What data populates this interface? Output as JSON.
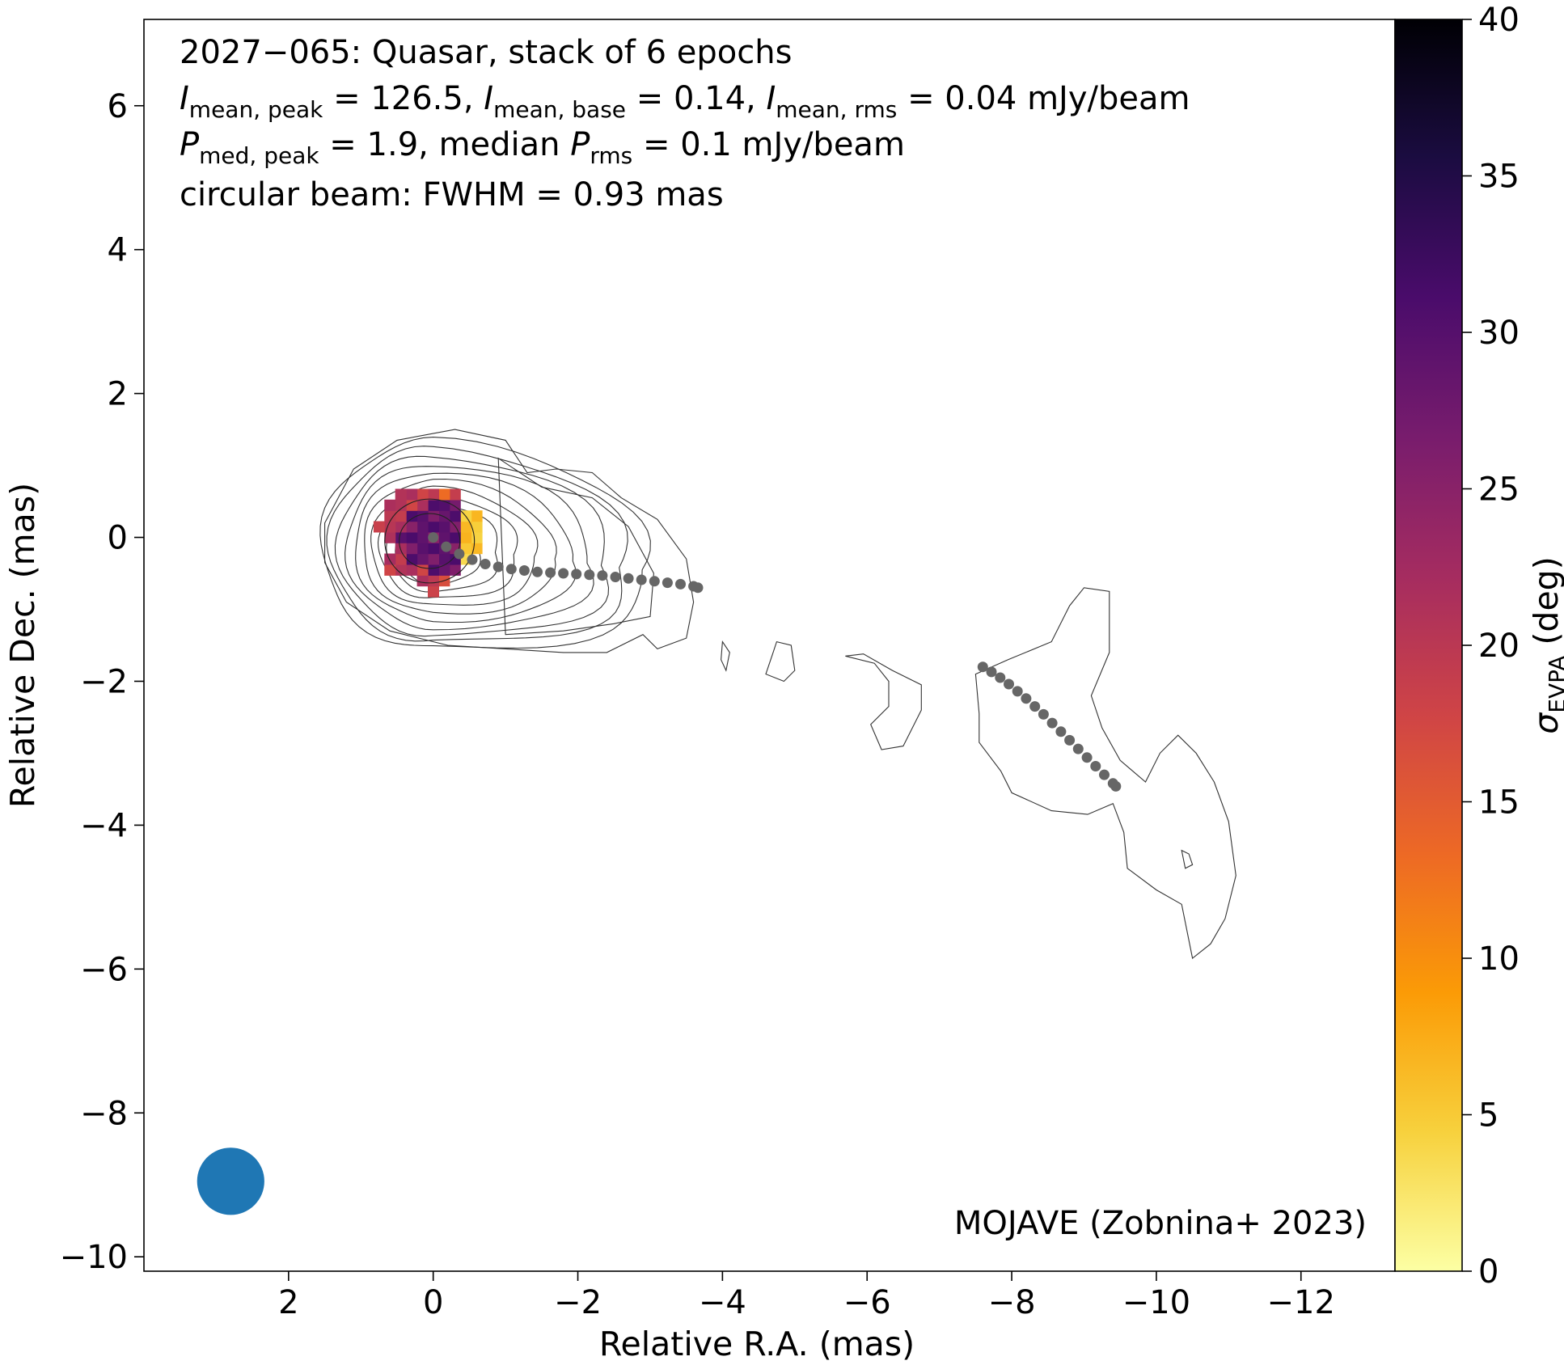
{
  "chart_data": {
    "type": "heatmap",
    "overlay_types": [
      "contour",
      "scatter"
    ],
    "info": {
      "line1": "2027−065: Quasar, stack of 6 epochs",
      "line2": {
        "i1_sym": "I",
        "i1_sub": "mean, peak",
        "i1_val": " = 126.5, ",
        "i2_sym": "I",
        "i2_sub": "mean, base",
        "i2_val": " = 0.14, ",
        "i3_sym": "I",
        "i3_sub": "mean, rms",
        "i3_val": " = 0.04 mJy/beam"
      },
      "line3": {
        "p1_sym": "P",
        "p1_sub": "med, peak",
        "p1_val": " = 1.9, median ",
        "p2_sym": "P",
        "p2_sub": "rms",
        "p2_val": " = 0.1 mJy/beam"
      },
      "line4": "circular beam: FWHM = 0.93 mas"
    },
    "credit": "MOJAVE (Zobnina+ 2023)",
    "xlabel": "Relative R.A. (mas)",
    "ylabel": "Relative Dec. (mas)",
    "xlim": [
      4.0,
      -13.3
    ],
    "ylim": [
      -10.2,
      7.2
    ],
    "x_ticks": [
      2,
      0,
      -2,
      -4,
      -6,
      -8,
      -10,
      -12
    ],
    "x_tick_labels": [
      "2",
      "0",
      "−2",
      "−4",
      "−6",
      "−8",
      "−10",
      "−12"
    ],
    "y_ticks": [
      6,
      4,
      2,
      0,
      -2,
      -4,
      -6,
      -8,
      -10
    ],
    "y_tick_labels": [
      "6",
      "4",
      "2",
      "0",
      "−2",
      "−4",
      "−6",
      "−8",
      "−10"
    ],
    "colorbar": {
      "label_sym": "σ",
      "label_sub": "EVPA",
      "label_unit": " (deg)",
      "range": [
        0,
        40
      ],
      "ticks": [
        0,
        5,
        10,
        15,
        20,
        25,
        30,
        35,
        40
      ],
      "tick_labels": [
        "0",
        "5",
        "10",
        "15",
        "20",
        "25",
        "30",
        "35",
        "40"
      ],
      "colormap": "inferno_r",
      "colormap_stops": [
        "#fcffa4",
        "#f7d13d",
        "#fb9b06",
        "#ed6925",
        "#cf4446",
        "#a52c60",
        "#781c6d",
        "#4a0c6b",
        "#1b0c41",
        "#000004"
      ]
    },
    "heatmap": {
      "center": [
        0.0,
        0.0
      ],
      "radius_mas": 0.75,
      "pixel_mas": 0.15,
      "value_range_deg": [
        2,
        33
      ],
      "typical": "inner region ~26-30 deg, eastern rim ~18-22 deg, western rim ~3-8 deg"
    },
    "contours": {
      "color": "#333333",
      "levels_count": 11,
      "core_center": [
        0.0,
        0.0
      ],
      "east_extent_mas": 1.55,
      "outer_lobe_west_extent_mas": -3.7
    },
    "ridgeline_color": "#666666",
    "ridgeline_segments": [
      {
        "x": [
          0.0,
          -0.18,
          -0.36,
          -0.54,
          -0.72,
          -0.9,
          -1.08,
          -1.26,
          -1.44,
          -1.62,
          -1.8,
          -1.98,
          -2.16,
          -2.34,
          -2.52,
          -2.7,
          -2.88,
          -3.06,
          -3.24,
          -3.42,
          -3.6,
          -3.66
        ],
        "y": [
          0.0,
          -0.13,
          -0.23,
          -0.31,
          -0.37,
          -0.41,
          -0.44,
          -0.46,
          -0.48,
          -0.49,
          -0.5,
          -0.51,
          -0.52,
          -0.53,
          -0.55,
          -0.57,
          -0.59,
          -0.61,
          -0.63,
          -0.65,
          -0.68,
          -0.7
        ]
      },
      {
        "x": [
          -7.6,
          -7.72,
          -7.84,
          -7.96,
          -8.08,
          -8.2,
          -8.32,
          -8.44,
          -8.56,
          -8.68,
          -8.8,
          -8.92,
          -9.04,
          -9.16,
          -9.28,
          -9.4,
          -9.44
        ],
        "y": [
          -1.8,
          -1.87,
          -1.95,
          -2.04,
          -2.14,
          -2.24,
          -2.35,
          -2.46,
          -2.58,
          -2.7,
          -2.82,
          -2.94,
          -3.06,
          -3.18,
          -3.3,
          -3.42,
          -3.46
        ]
      }
    ],
    "beam": {
      "x": 2.8,
      "y": -8.95,
      "fwhm_mas": 0.93,
      "color": "#1f77b4"
    },
    "grid": false,
    "legend": "none"
  }
}
